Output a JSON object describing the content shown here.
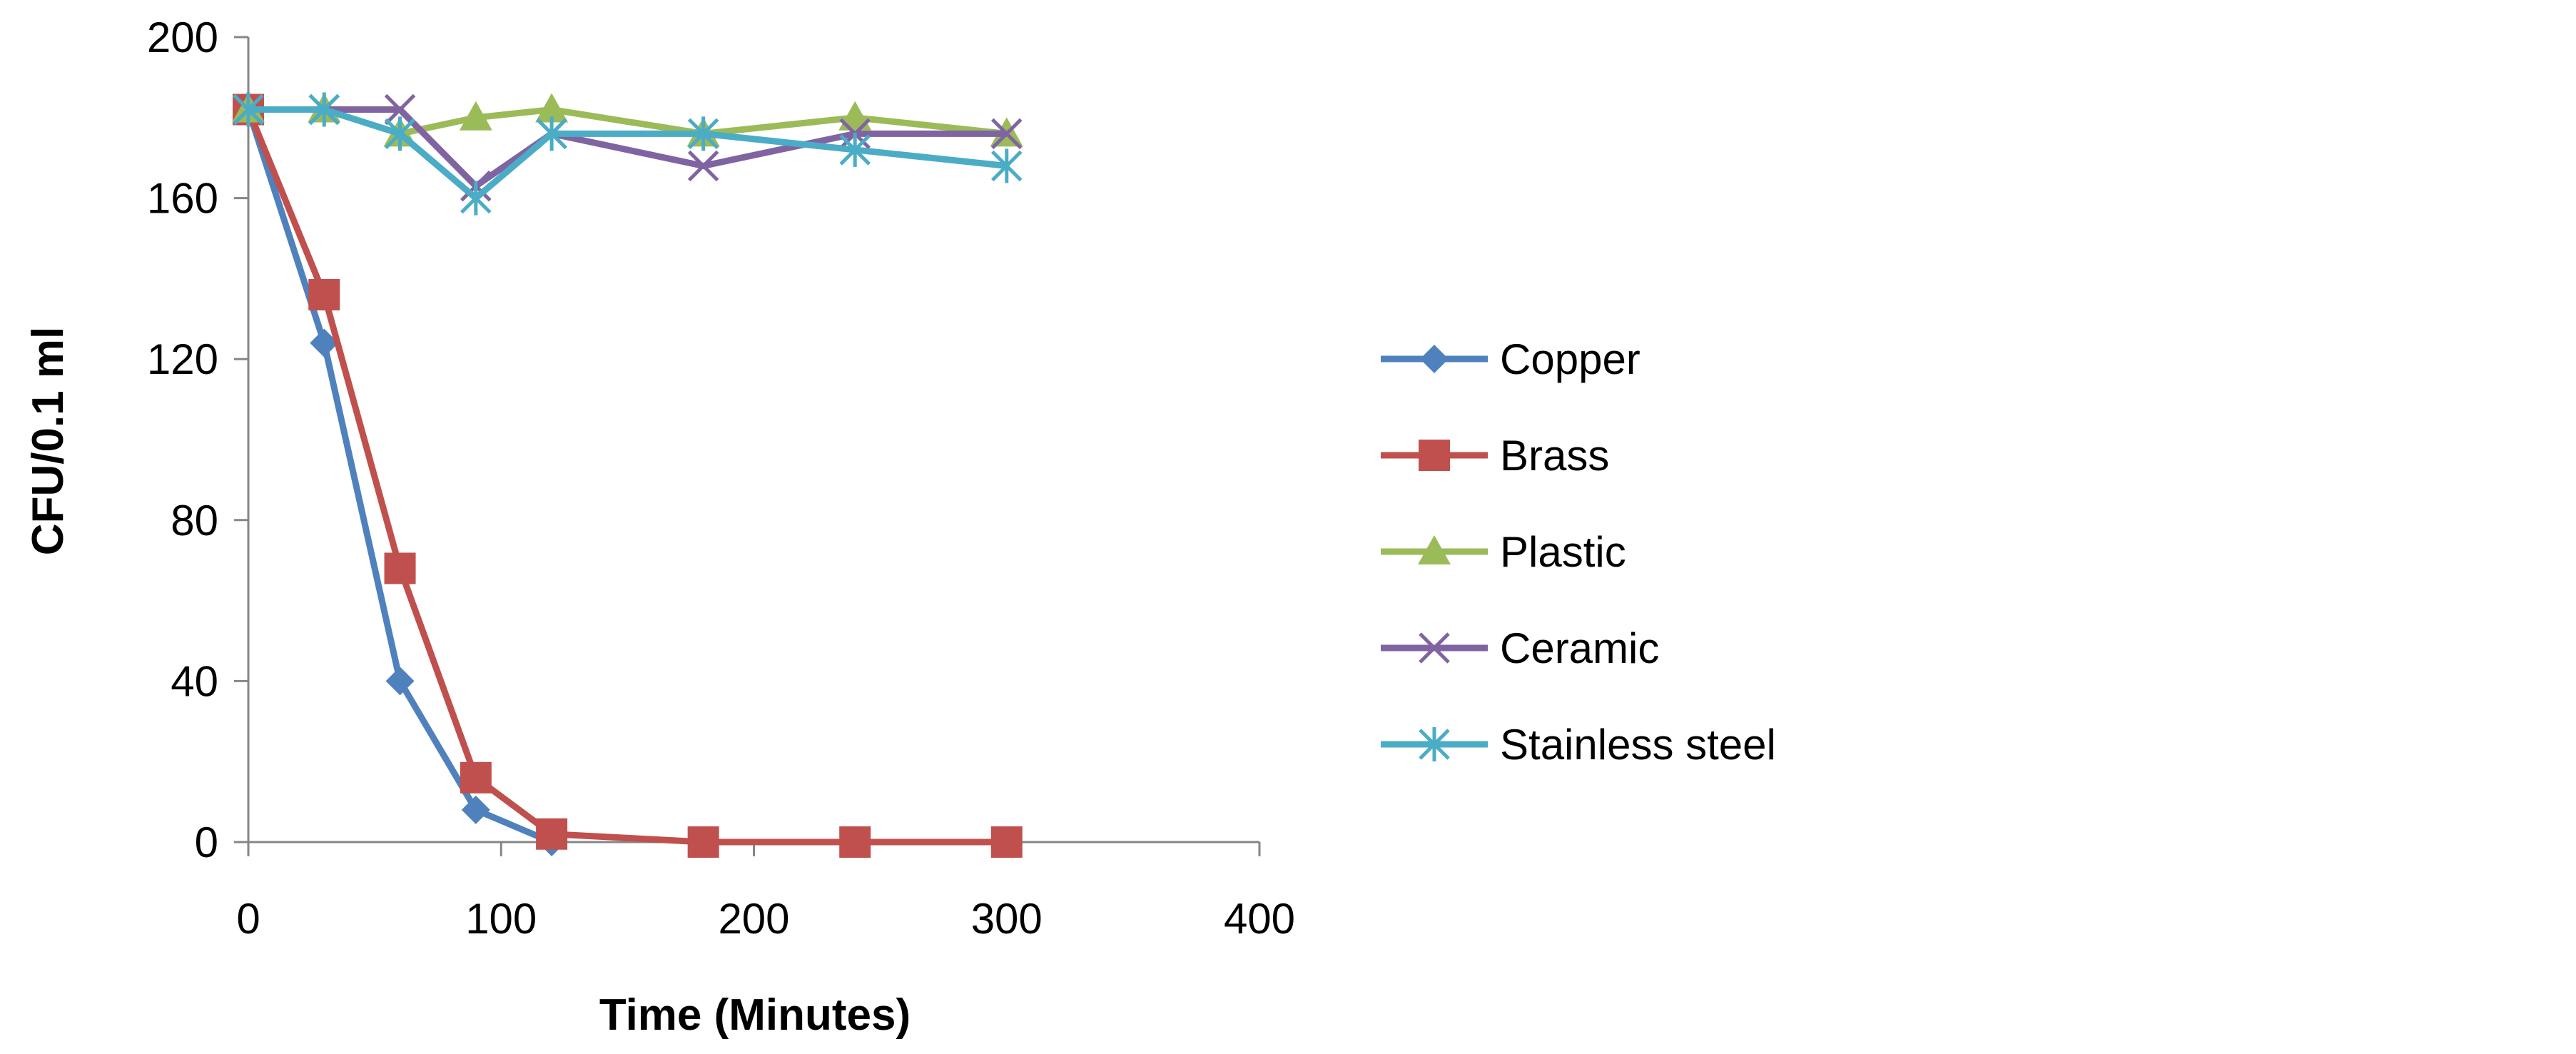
{
  "chart_data": {
    "type": "line",
    "title": "",
    "xlabel": "Time (Minutes)",
    "ylabel": "CFU/0.1 ml",
    "xlim": [
      0,
      400
    ],
    "ylim": [
      0,
      200
    ],
    "xticks": [
      0,
      100,
      200,
      300,
      400
    ],
    "yticks": [
      0,
      40,
      80,
      120,
      160,
      200
    ],
    "grid": false,
    "legend": "right",
    "series": [
      {
        "name": "Copper",
        "color": "#4F81BD",
        "marker": "diamond",
        "x": [
          0,
          30,
          60,
          90,
          120
        ],
        "y": [
          182,
          124,
          40,
          8,
          0
        ]
      },
      {
        "name": "Brass",
        "color": "#C0504D",
        "marker": "square",
        "x": [
          0,
          30,
          60,
          90,
          120,
          180,
          240,
          300
        ],
        "y": [
          182,
          136,
          68,
          16,
          2,
          0,
          0,
          0
        ]
      },
      {
        "name": "Plastic",
        "color": "#9BBB59",
        "marker": "triangle",
        "x": [
          0,
          30,
          60,
          90,
          120,
          180,
          240,
          300
        ],
        "y": [
          182,
          182,
          176,
          180,
          182,
          176,
          180,
          176
        ]
      },
      {
        "name": "Ceramic",
        "color": "#8064A2",
        "marker": "x",
        "x": [
          0,
          30,
          60,
          90,
          120,
          180,
          240,
          300
        ],
        "y": [
          182,
          182,
          182,
          163,
          176,
          168,
          176,
          176
        ]
      },
      {
        "name": "Stainless steel",
        "color": "#4BACC6",
        "marker": "star",
        "x": [
          0,
          30,
          60,
          90,
          120,
          180,
          240,
          300
        ],
        "y": [
          182,
          182,
          176,
          160,
          176,
          176,
          172,
          168
        ]
      }
    ]
  }
}
